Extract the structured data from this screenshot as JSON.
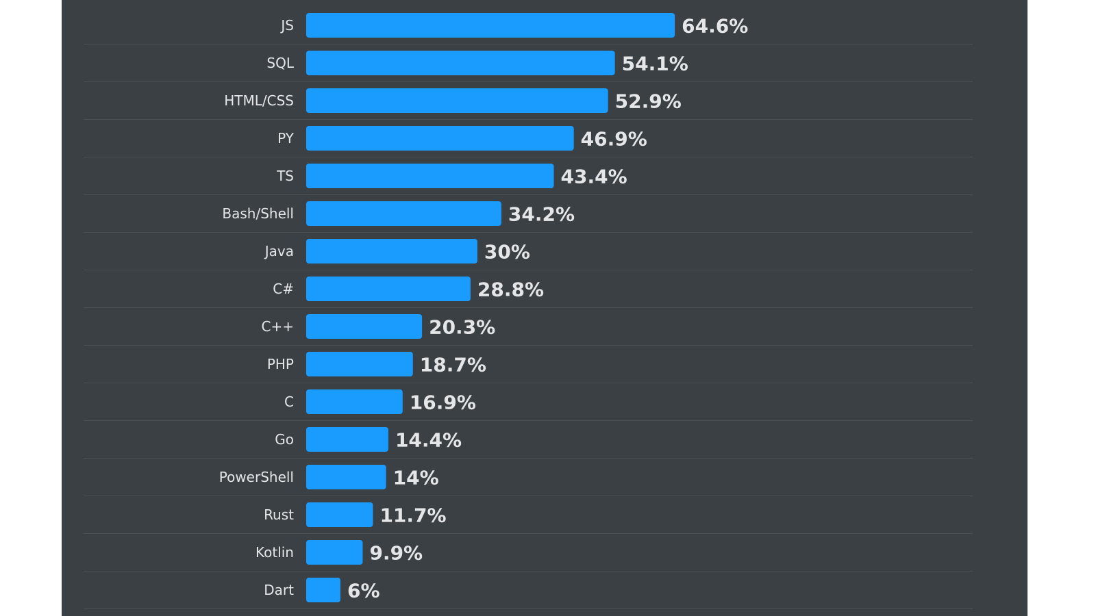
{
  "chart_data": {
    "type": "bar",
    "orientation": "horizontal",
    "categories": [
      "JS",
      "SQL",
      "HTML/CSS",
      "PY",
      "TS",
      "Bash/Shell",
      "Java",
      "C#",
      "C++",
      "PHP",
      "C",
      "Go",
      "PowerShell",
      "Rust",
      "Kotlin",
      "Dart"
    ],
    "values": [
      64.6,
      54.1,
      52.9,
      46.9,
      43.4,
      34.2,
      30,
      28.8,
      20.3,
      18.7,
      16.9,
      14.4,
      14,
      11.7,
      9.9,
      6
    ],
    "value_labels": [
      "64.6%",
      "54.1%",
      "52.9%",
      "46.9%",
      "43.4%",
      "34.2%",
      "30%",
      "28.8%",
      "20.3%",
      "18.7%",
      "16.9%",
      "14.4%",
      "14%",
      "11.7%",
      "9.9%",
      "6%"
    ],
    "title": "",
    "xlabel": "",
    "ylabel": "",
    "xlim": [
      0,
      100
    ],
    "grid": false,
    "legend": "none"
  },
  "colors": {
    "panel_background": "#3b4045",
    "bar": "#1a9cff",
    "text": "#e4e6e8",
    "row_divider": "#4a5055"
  }
}
